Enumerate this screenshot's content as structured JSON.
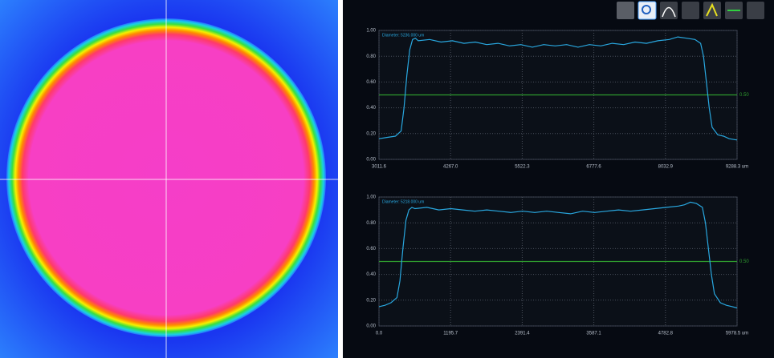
{
  "chart_data": [
    {
      "type": "line",
      "series": [
        {
          "name": "Diameter: 5236.000 um",
          "color": "#29a8e0",
          "values": [
            0.16,
            0.17,
            0.18,
            0.22,
            0.4,
            0.65,
            0.85,
            0.93,
            0.94,
            0.92,
            0.93,
            0.91,
            0.92,
            0.9,
            0.91,
            0.89,
            0.9,
            0.88,
            0.89,
            0.87,
            0.89,
            0.88,
            0.89,
            0.87,
            0.89,
            0.88,
            0.9,
            0.89,
            0.91,
            0.9,
            0.92,
            0.93,
            0.95,
            0.94,
            0.93,
            0.9,
            0.8,
            0.6,
            0.4,
            0.25,
            0.19,
            0.18,
            0.16,
            0.15
          ]
        }
      ],
      "x": [
        3011.6,
        3150,
        3300,
        3400,
        3450,
        3500,
        3550,
        3600,
        3650,
        3700,
        3900,
        4100,
        4300,
        4500,
        4700,
        4900,
        5100,
        5300,
        5500,
        5700,
        5900,
        6100,
        6300,
        6500,
        6700,
        6900,
        7100,
        7300,
        7500,
        7700,
        7900,
        8100,
        8250,
        8400,
        8550,
        8650,
        8700,
        8750,
        8800,
        8850,
        8950,
        9050,
        9150,
        9288.3
      ],
      "xlim": [
        3011.6,
        9288.3
      ],
      "xticks": [
        3011.6,
        {
          "value": 4267.0,
          "label": "4267.0"
        },
        5522.3,
        6777.6,
        8032.9,
        {
          "value": 9288.3,
          "label": "9288.3 um"
        }
      ],
      "ylim": [
        0,
        1
      ],
      "yticks": [
        {
          "value": 0,
          "label": "0.00"
        },
        {
          "value": 0.2,
          "label": "0.20"
        },
        {
          "value": 0.4,
          "label": "0.40"
        },
        {
          "value": 0.6,
          "label": "0.60"
        },
        {
          "value": 0.8,
          "label": "0.80"
        },
        {
          "value": 1,
          "label": "1.00"
        }
      ],
      "threshold": {
        "value": 0.5,
        "label": "0.50",
        "color": "#2e9a2e"
      },
      "grid": true
    },
    {
      "type": "line",
      "series": [
        {
          "name": "Diameter: 5218.000 um",
          "color": "#29a8e0",
          "values": [
            0.15,
            0.16,
            0.18,
            0.22,
            0.35,
            0.6,
            0.82,
            0.9,
            0.92,
            0.91,
            0.92,
            0.9,
            0.91,
            0.9,
            0.89,
            0.9,
            0.89,
            0.88,
            0.89,
            0.88,
            0.89,
            0.88,
            0.87,
            0.89,
            0.88,
            0.89,
            0.9,
            0.89,
            0.9,
            0.91,
            0.92,
            0.93,
            0.94,
            0.96,
            0.95,
            0.92,
            0.8,
            0.6,
            0.4,
            0.25,
            0.18,
            0.16,
            0.15,
            0.14
          ]
        }
      ],
      "x": [
        0,
        100,
        200,
        300,
        350,
        400,
        450,
        500,
        550,
        600,
        800,
        1000,
        1200,
        1400,
        1600,
        1800,
        2000,
        2200,
        2400,
        2600,
        2800,
        3000,
        3200,
        3400,
        3600,
        3800,
        4000,
        4200,
        4400,
        4600,
        4800,
        5000,
        5100,
        5200,
        5300,
        5400,
        5450,
        5500,
        5550,
        5600,
        5700,
        5800,
        5900,
        5978.5
      ],
      "xlim": [
        0,
        5978.5
      ],
      "xticks": [
        {
          "value": 0,
          "label": "0.0"
        },
        1195.7,
        2391.4,
        3587.1,
        4782.8,
        {
          "value": 5978.5,
          "label": "5978.5 um"
        }
      ],
      "ylim": [
        0,
        1
      ],
      "yticks": [
        {
          "value": 0,
          "label": "0.00"
        },
        {
          "value": 0.2,
          "label": "0.20"
        },
        {
          "value": 0.4,
          "label": "0.40"
        },
        {
          "value": 0.6,
          "label": "0.60"
        },
        {
          "value": 0.8,
          "label": "0.80"
        },
        {
          "value": 1,
          "label": "1.00"
        }
      ],
      "threshold": {
        "value": 0.5,
        "label": "0.50",
        "color": "#2e9a2e"
      },
      "grid": true
    }
  ]
}
